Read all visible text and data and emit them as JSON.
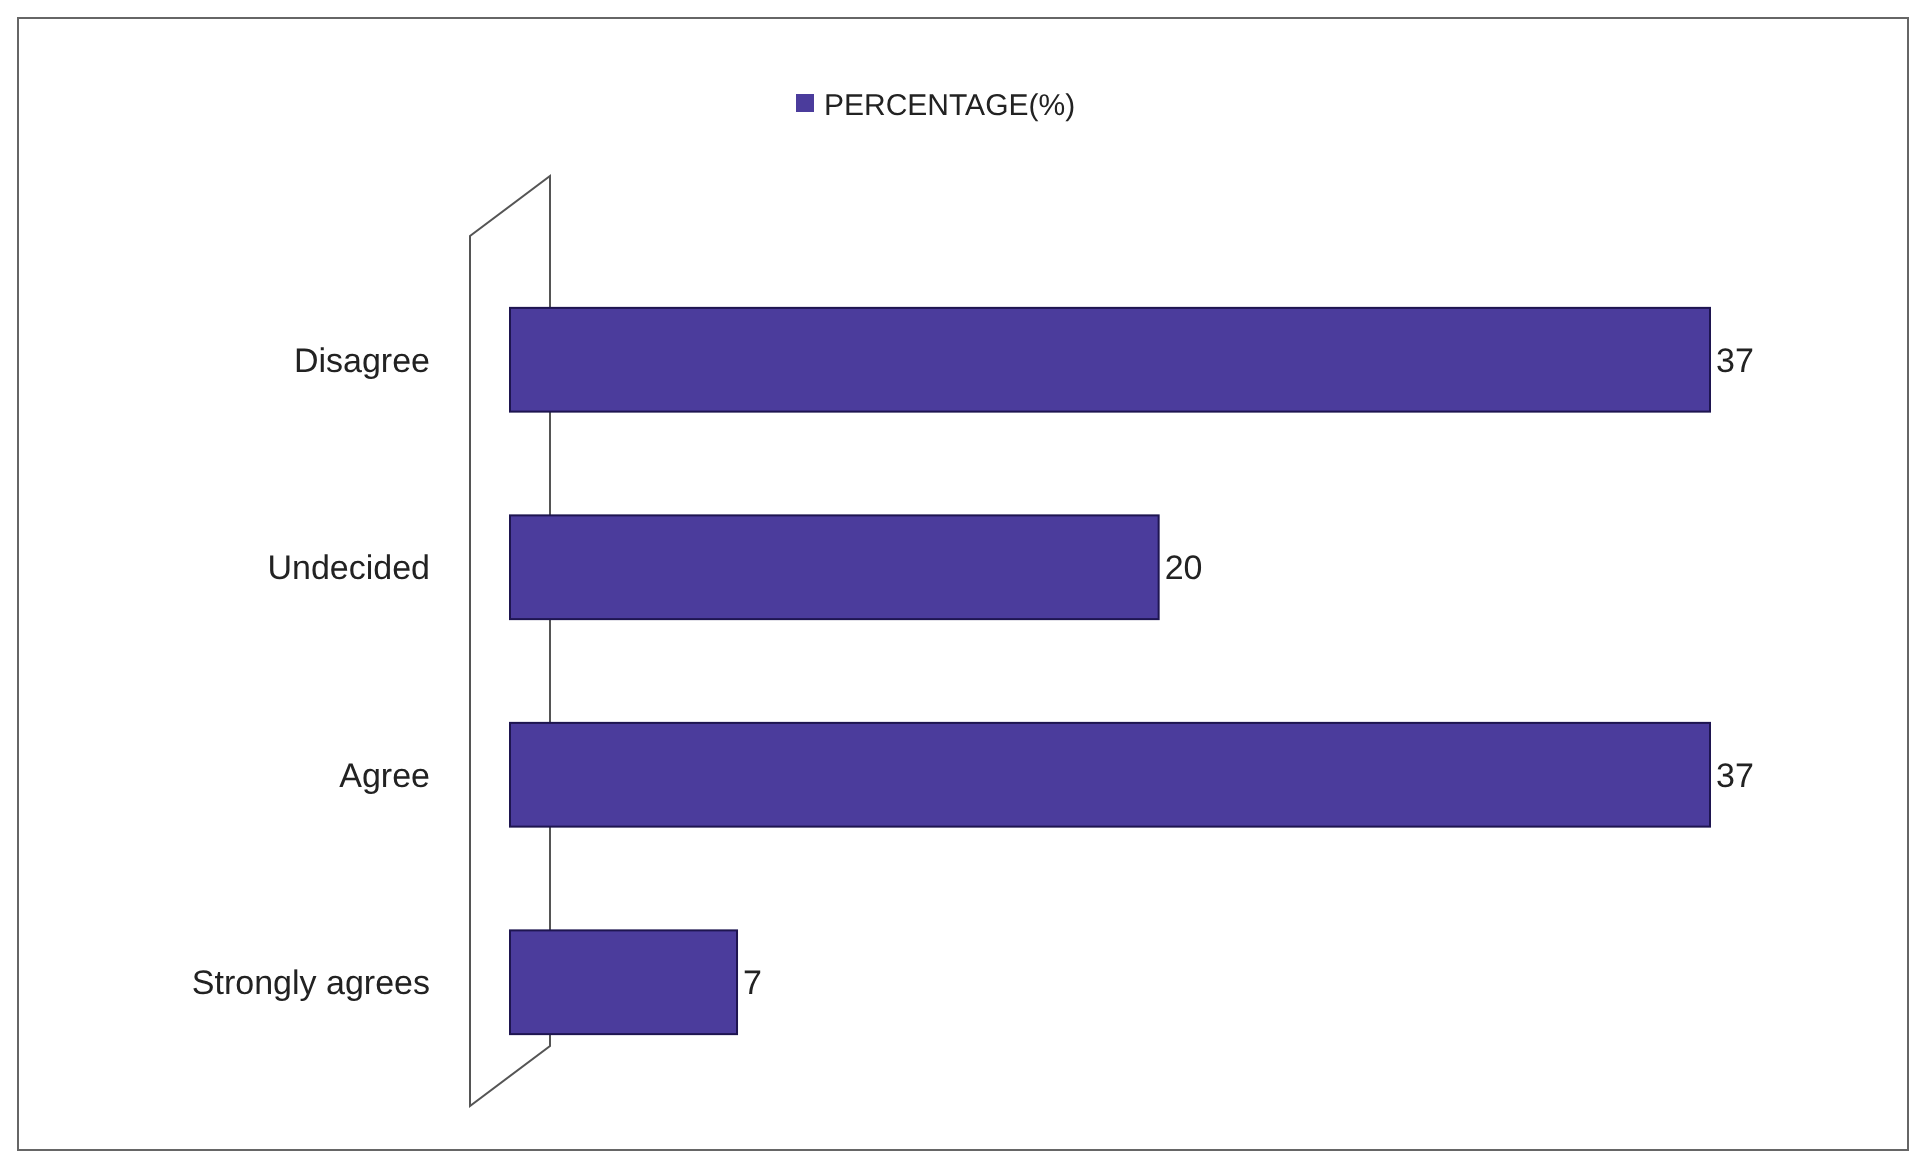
{
  "chart_data": {
    "type": "bar",
    "orientation": "horizontal",
    "categories": [
      "Disagree",
      "Undecided",
      "Agree",
      "Strongly agrees"
    ],
    "series": [
      {
        "name": "PERCENTAGE(%)",
        "color": "#4b3c9c",
        "values": [
          37,
          20,
          37,
          7
        ]
      }
    ],
    "data_labels": true,
    "legend": "top",
    "grid": false
  }
}
